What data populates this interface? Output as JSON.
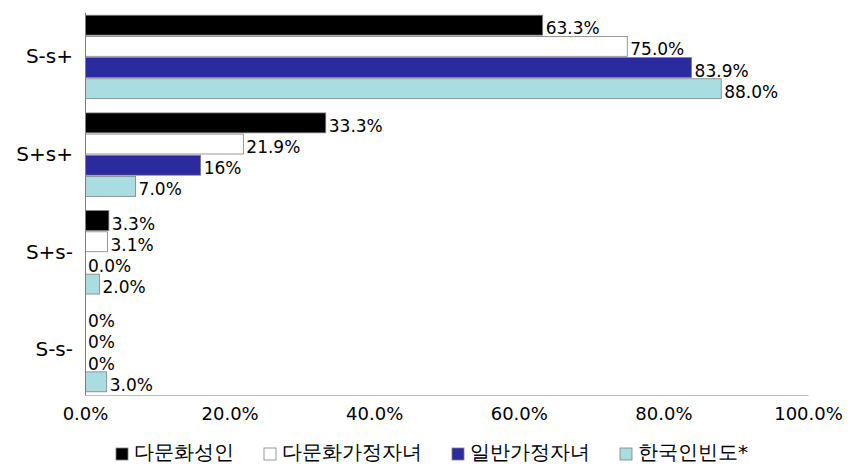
{
  "chart_data": {
    "type": "bar",
    "orientation": "horizontal",
    "categories": [
      "S-s+",
      "S+s+",
      "S+s-",
      "S-s-"
    ],
    "series": [
      {
        "name": "다문화성인",
        "color": "#000000",
        "values": [
          63.3,
          33.3,
          3.3,
          0
        ],
        "value_labels": [
          "63.3%",
          "33.3%",
          "3.3%",
          "0%"
        ]
      },
      {
        "name": "다문화가정자녀",
        "color": "#ffffff",
        "values": [
          75.0,
          21.9,
          3.1,
          0
        ],
        "value_labels": [
          "75.0%",
          "21.9%",
          "3.1%",
          "0%"
        ]
      },
      {
        "name": "일반가정자녀",
        "color": "#2b2b9e",
        "values": [
          83.9,
          16,
          0.0,
          0
        ],
        "value_labels": [
          "83.9%",
          "16%",
          "0.0%",
          "0%"
        ]
      },
      {
        "name": "한국인빈도*",
        "color": "#aadde2",
        "values": [
          88.0,
          7.0,
          2.0,
          3.0
        ],
        "value_labels": [
          "88.0%",
          "7.0%",
          "2.0%",
          "3.0%"
        ]
      }
    ],
    "xlim": [
      0,
      100
    ],
    "xticks": [
      {
        "value": 0,
        "label": "0.0%"
      },
      {
        "value": 20,
        "label": "20.0%"
      },
      {
        "value": 40,
        "label": "40.0%"
      },
      {
        "value": 60,
        "label": "60.0%"
      },
      {
        "value": 80,
        "label": "80.0%"
      },
      {
        "value": 100,
        "label": "100.0%"
      }
    ],
    "grid": false,
    "data_labels": true,
    "legend": "bottom"
  }
}
